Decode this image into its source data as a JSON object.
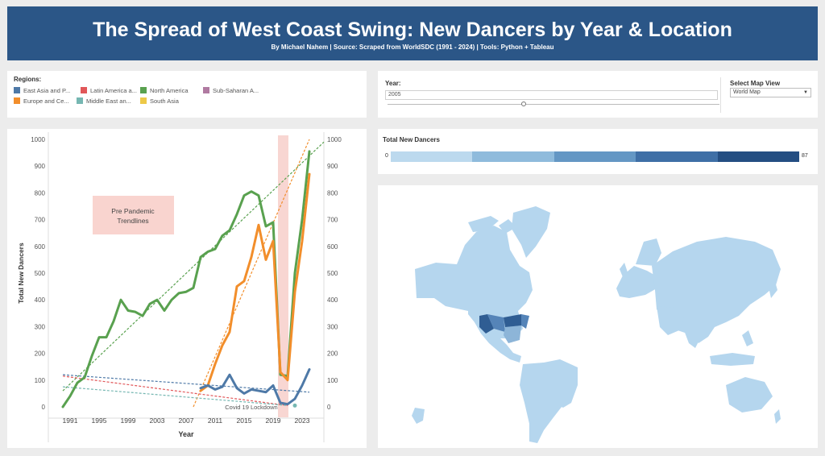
{
  "header": {
    "title": "The Spread of West Coast Swing: New Dancers by Year & Location",
    "subtitle": "By Michael Nahem | Source: Scraped from WorldSDC (1991 - 2024) | Tools: Python + Tableau"
  },
  "legend": {
    "title": "Regions:",
    "items": [
      {
        "label": "East Asia and P...",
        "color": "#4e79a7"
      },
      {
        "label": "Latin America a...",
        "color": "#e15759"
      },
      {
        "label": "North America",
        "color": "#59a14f"
      },
      {
        "label": "Sub-Saharan A...",
        "color": "#b07aa1"
      },
      {
        "label": "Europe and Ce...",
        "color": "#f28e2b"
      },
      {
        "label": "Middle East an...",
        "color": "#76b7b2"
      },
      {
        "label": "South Asia",
        "color": "#edc948"
      }
    ]
  },
  "controls": {
    "year_label": "Year:",
    "year_value": "2005",
    "year_slider_fraction": 0.41,
    "map_view_label": "Select Map View",
    "map_view_value": "World Map"
  },
  "total": {
    "label": "Total New Dancers",
    "min": "0",
    "max": "87",
    "colors": [
      "#bcd9ee",
      "#8fbbdc",
      "#6497c4",
      "#3f6fa6",
      "#244e82"
    ]
  },
  "map": {
    "land_color": "#b5d6ee",
    "highlight_colors": [
      "#2f5d93",
      "#5584b8",
      "#8db5d8"
    ]
  },
  "annotations": {
    "pre_pandemic": [
      "Pre Pandemic",
      "Trendlines"
    ],
    "covid": "Covid 19 Lockdown"
  },
  "chart_data": {
    "type": "line",
    "title": "",
    "xlabel": "Year",
    "ylabel": "Total New Dancers",
    "xlim": [
      1988,
      2026
    ],
    "ylim": [
      0,
      1000
    ],
    "x_ticks": [
      1991,
      1995,
      1999,
      2003,
      2007,
      2011,
      2015,
      2019,
      2023
    ],
    "y_ticks": [
      0,
      100,
      200,
      300,
      400,
      500,
      600,
      700,
      800,
      900,
      1000
    ],
    "covid_band": [
      2020,
      2021
    ],
    "series": [
      {
        "name": "North America",
        "color": "#59a14f",
        "x": [
          1990,
          1991,
          1992,
          1993,
          1994,
          1995,
          1996,
          1997,
          1998,
          1999,
          2000,
          2001,
          2002,
          2003,
          2004,
          2005,
          2006,
          2007,
          2008,
          2009,
          2010,
          2011,
          2012,
          2013,
          2014,
          2015,
          2016,
          2017,
          2018,
          2019,
          2020,
          2021,
          2022,
          2023,
          2024
        ],
        "y": [
          0,
          40,
          90,
          110,
          190,
          260,
          260,
          320,
          400,
          360,
          355,
          340,
          385,
          400,
          360,
          400,
          425,
          430,
          445,
          560,
          580,
          590,
          640,
          660,
          720,
          790,
          805,
          790,
          675,
          690,
          120,
          115,
          500,
          700,
          955
        ]
      },
      {
        "name": "Europe and Central Asia",
        "color": "#f28e2b",
        "x": [
          2009,
          2010,
          2011,
          2012,
          2013,
          2014,
          2015,
          2016,
          2017,
          2018,
          2019,
          2020,
          2021,
          2022,
          2023,
          2024
        ],
        "y": [
          60,
          80,
          160,
          230,
          280,
          450,
          470,
          560,
          680,
          550,
          620,
          130,
          100,
          430,
          620,
          870
        ]
      },
      {
        "name": "East Asia and Pacific",
        "color": "#4e79a7",
        "x": [
          2009,
          2010,
          2011,
          2012,
          2013,
          2014,
          2015,
          2016,
          2017,
          2018,
          2019,
          2020,
          2021,
          2022,
          2023,
          2024
        ],
        "y": [
          70,
          80,
          65,
          75,
          120,
          70,
          50,
          65,
          60,
          55,
          80,
          15,
          10,
          30,
          80,
          140
        ]
      },
      {
        "name": "Middle East and North Africa",
        "color": "#76b7b2",
        "x": [
          2022
        ],
        "y": [
          5
        ]
      }
    ],
    "trendlines": [
      {
        "series": "North America",
        "color": "#59a14f",
        "x": [
          1990,
          2026
        ],
        "y": [
          60,
          990
        ]
      },
      {
        "series": "Europe and Central Asia",
        "color": "#f28e2b",
        "x": [
          2008,
          2024
        ],
        "y": [
          0,
          1000
        ]
      },
      {
        "series": "East Asia and Pacific",
        "color": "#4e79a7",
        "x": [
          1990,
          2024
        ],
        "y": [
          120,
          55
        ]
      },
      {
        "series": "Latin America and Caribbean",
        "color": "#e15759",
        "x": [
          1990,
          2021
        ],
        "y": [
          115,
          5
        ]
      },
      {
        "series": "Middle East and North Africa",
        "color": "#76b7b2",
        "x": [
          1990,
          2021
        ],
        "y": [
          75,
          5
        ]
      }
    ]
  }
}
